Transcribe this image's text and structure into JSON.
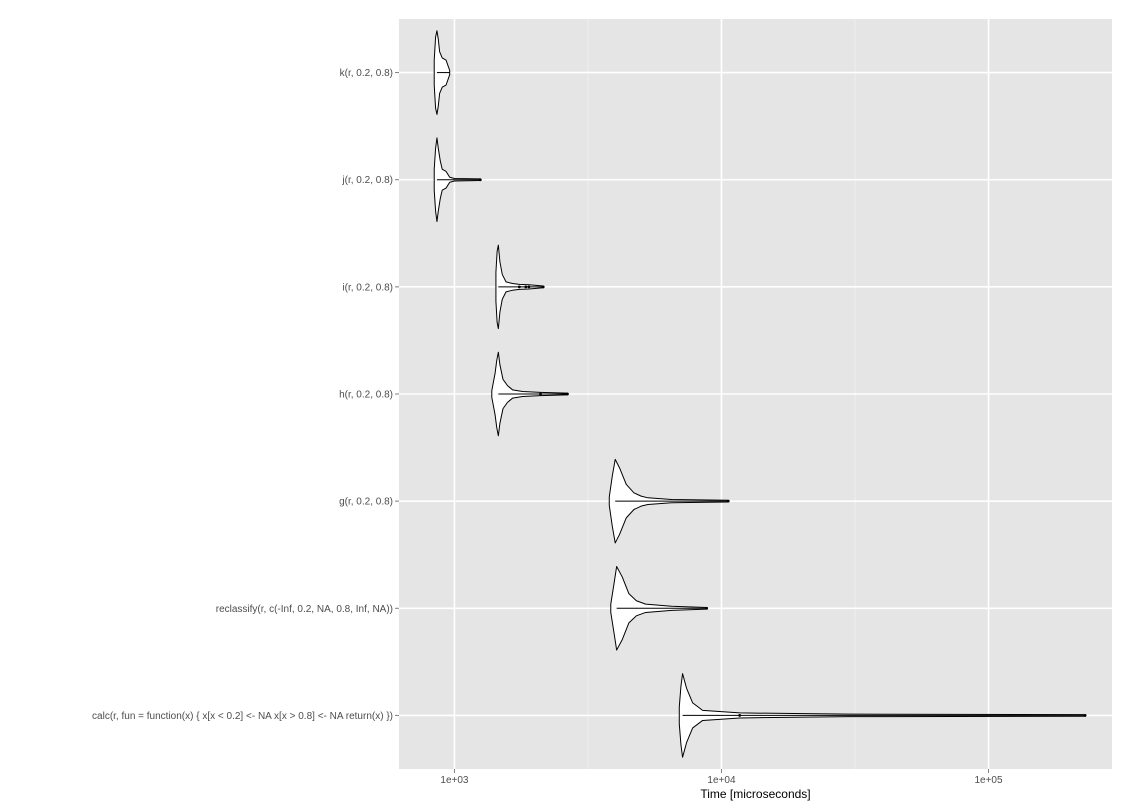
{
  "chart_data": {
    "type": "violin",
    "xlabel": "Time [microseconds]",
    "ylabel": "",
    "x_scale": "log10",
    "xlim": [
      620,
      290000
    ],
    "x_ticks": [
      {
        "value": 1000,
        "label": "1e+03"
      },
      {
        "value": 10000,
        "label": "1e+04"
      },
      {
        "value": 100000,
        "label": "1e+05"
      }
    ],
    "grid": true,
    "legend": "none",
    "colors": {
      "panel_bg": "#e5e5e5",
      "grid_major": "#ffffff",
      "grid_minor": "#f2f2f2",
      "violin_fill": "#ffffff",
      "violin_stroke": "#000000"
    },
    "categories": [
      {
        "label": "k(r, 0.2, 0.8)",
        "min": 840,
        "max": 960,
        "center": 860,
        "density": [
          [
            840,
            0.3
          ],
          [
            850,
            0.85
          ],
          [
            860,
            1.0
          ],
          [
            870,
            0.8
          ],
          [
            880,
            0.5
          ],
          [
            900,
            0.35
          ],
          [
            930,
            0.3
          ],
          [
            960,
            0.05
          ]
        ],
        "outliers": []
      },
      {
        "label": "j(r, 0.2, 0.8)",
        "min": 840,
        "max": 1250,
        "center": 860,
        "density": [
          [
            840,
            0.25
          ],
          [
            850,
            0.75
          ],
          [
            860,
            1.0
          ],
          [
            870,
            0.75
          ],
          [
            885,
            0.45
          ],
          [
            900,
            0.25
          ],
          [
            930,
            0.2
          ],
          [
            960,
            0.06
          ],
          [
            1000,
            0.03
          ],
          [
            1250,
            0.02
          ]
        ],
        "outliers": [
          1250
        ]
      },
      {
        "label": "i(r, 0.2, 0.8)",
        "min": 1430,
        "max": 2150,
        "center": 1460,
        "density": [
          [
            1430,
            0.35
          ],
          [
            1445,
            0.85
          ],
          [
            1460,
            1.0
          ],
          [
            1480,
            0.6
          ],
          [
            1510,
            0.3
          ],
          [
            1560,
            0.12
          ],
          [
            1650,
            0.08
          ],
          [
            1750,
            0.06
          ],
          [
            1900,
            0.05
          ],
          [
            2150,
            0.02
          ]
        ],
        "outliers": [
          1750,
          1850,
          1900,
          2150
        ]
      },
      {
        "label": "h(r, 0.2, 0.8)",
        "min": 1380,
        "max": 2650,
        "center": 1460,
        "density": [
          [
            1380,
            0.08
          ],
          [
            1420,
            0.5
          ],
          [
            1440,
            0.8
          ],
          [
            1460,
            1.0
          ],
          [
            1480,
            0.7
          ],
          [
            1520,
            0.35
          ],
          [
            1580,
            0.2
          ],
          [
            1650,
            0.1
          ],
          [
            1800,
            0.06
          ],
          [
            2100,
            0.04
          ],
          [
            2650,
            0.02
          ]
        ],
        "outliers": [
          2100,
          2650
        ]
      },
      {
        "label": "g(r, 0.2, 0.8)",
        "min": 3800,
        "max": 10600,
        "center": 4000,
        "density": [
          [
            3800,
            0.1
          ],
          [
            3900,
            0.6
          ],
          [
            4000,
            1.0
          ],
          [
            4150,
            0.8
          ],
          [
            4400,
            0.4
          ],
          [
            4700,
            0.2
          ],
          [
            5000,
            0.12
          ],
          [
            5300,
            0.08
          ],
          [
            6500,
            0.04
          ],
          [
            10600,
            0.02
          ]
        ],
        "outliers": [
          10600
        ]
      },
      {
        "label": "reclassify(r, c(-Inf, 0.2, NA, 0.8, Inf, NA))",
        "min": 3850,
        "max": 8800,
        "center": 4050,
        "density": [
          [
            3850,
            0.1
          ],
          [
            3950,
            0.55
          ],
          [
            4050,
            1.0
          ],
          [
            4250,
            0.75
          ],
          [
            4500,
            0.35
          ],
          [
            4800,
            0.18
          ],
          [
            5200,
            0.1
          ],
          [
            6500,
            0.05
          ],
          [
            8800,
            0.02
          ]
        ],
        "outliers": [
          8800
        ]
      },
      {
        "label": "calc(r, fun = function(x) {     x[x < 0.2] <- NA     x[x > 0.8] <- NA     return(x) })",
        "min": 6950,
        "max": 230000,
        "center": 7150,
        "density": [
          [
            6950,
            0.2
          ],
          [
            7050,
            0.7
          ],
          [
            7150,
            1.0
          ],
          [
            7400,
            0.65
          ],
          [
            7800,
            0.3
          ],
          [
            8500,
            0.12
          ],
          [
            11700,
            0.06
          ],
          [
            30000,
            0.03
          ],
          [
            230000,
            0.02
          ]
        ],
        "outliers": [
          11700,
          230000
        ]
      }
    ]
  }
}
